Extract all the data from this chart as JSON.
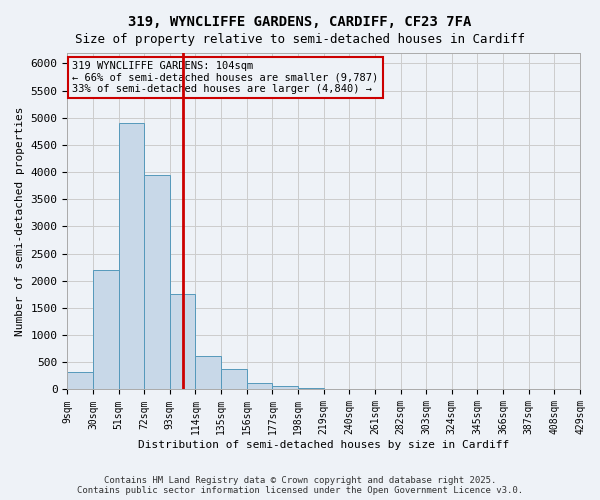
{
  "title1": "319, WYNCLIFFE GARDENS, CARDIFF, CF23 7FA",
  "title2": "Size of property relative to semi-detached houses in Cardiff",
  "xlabel": "Distribution of semi-detached houses by size in Cardiff",
  "ylabel": "Number of semi-detached properties",
  "footer1": "Contains HM Land Registry data © Crown copyright and database right 2025.",
  "footer2": "Contains public sector information licensed under the Open Government Licence v3.0.",
  "bin_labels": [
    "9sqm",
    "30sqm",
    "51sqm",
    "72sqm",
    "93sqm",
    "114sqm",
    "135sqm",
    "156sqm",
    "177sqm",
    "198sqm",
    "219sqm",
    "240sqm",
    "261sqm",
    "282sqm",
    "303sqm",
    "324sqm",
    "345sqm",
    "366sqm",
    "387sqm",
    "408sqm",
    "429sqm"
  ],
  "bar_values": [
    320,
    2200,
    4900,
    3950,
    1750,
    620,
    380,
    120,
    60,
    20,
    10,
    5,
    3,
    2,
    1,
    1,
    0,
    0,
    0,
    0
  ],
  "bar_color": "#c8d8e8",
  "bar_edge_color": "#5599bb",
  "vline_x": 4.5,
  "vline_color": "#cc0000",
  "annotation_text": "319 WYNCLIFFE GARDENS: 104sqm\n← 66% of semi-detached houses are smaller (9,787)\n33% of semi-detached houses are larger (4,840) →",
  "annotation_box_color": "#cc0000",
  "ylim": [
    0,
    6200
  ],
  "yticks": [
    0,
    500,
    1000,
    1500,
    2000,
    2500,
    3000,
    3500,
    4000,
    4500,
    5000,
    5500,
    6000
  ],
  "grid_color": "#cccccc",
  "bg_color": "#eef2f7"
}
